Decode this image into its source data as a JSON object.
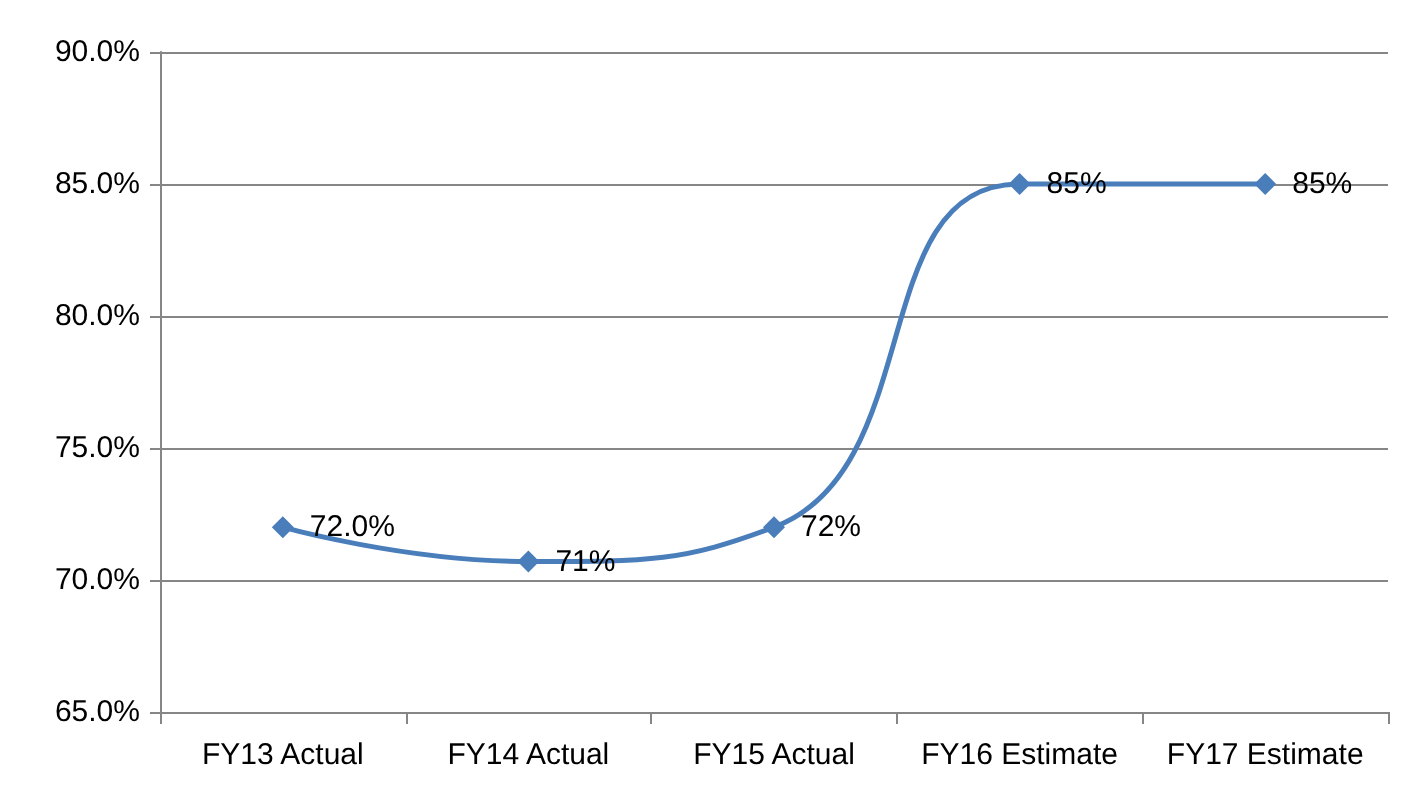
{
  "chart_data": {
    "type": "line",
    "categories": [
      "FY13 Actual",
      "FY14 Actual",
      "FY15 Actual",
      "FY16 Estimate",
      "FY17 Estimate"
    ],
    "series": [
      {
        "color": "#4a7ebb",
        "values": [
          72.0,
          70.7,
          72,
          85,
          85
        ],
        "value_labels": [
          "72.0%",
          "71%",
          "72%",
          "85%",
          "85%"
        ]
      }
    ],
    "ylim": [
      65,
      90
    ],
    "yticks": [
      {
        "value": 65,
        "label": "65.0%"
      },
      {
        "value": 70,
        "label": "70.0%"
      },
      {
        "value": 75,
        "label": "75.0%"
      },
      {
        "value": 80,
        "label": "80.0%"
      },
      {
        "value": 85,
        "label": "85.0%"
      },
      {
        "value": 90,
        "label": "90.0%"
      }
    ],
    "grid": "y",
    "marker": "diamond",
    "line_style": "solid"
  }
}
